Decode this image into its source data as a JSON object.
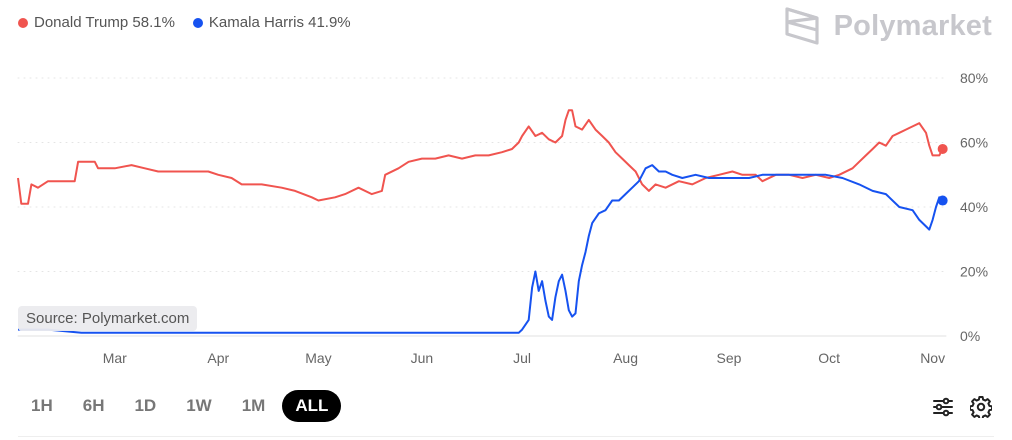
{
  "legend": {
    "trump": {
      "label": "Donald Trump 58.1%",
      "color": "#f0544f"
    },
    "harris": {
      "label": "Kamala Harris 41.9%",
      "color": "#1652f0"
    }
  },
  "brand": {
    "name": "Polymarket",
    "icon": "polymarket-logo-icon"
  },
  "source": "Source: Polymarket.com",
  "ranges": [
    "1H",
    "6H",
    "1D",
    "1W",
    "1M",
    "ALL"
  ],
  "active_range": "ALL",
  "tools": {
    "filter_icon": "sliders-icon",
    "settings_icon": "gear-icon"
  },
  "chart_data": {
    "type": "line",
    "x_ticks": [
      "Mar",
      "Apr",
      "May",
      "Jun",
      "Jul",
      "Aug",
      "Sep",
      "Oct",
      "Nov"
    ],
    "y_ticks": [
      "80%",
      "60%",
      "40%",
      "20%",
      "0%"
    ],
    "ylim": [
      0,
      80
    ],
    "grid": "dotted horizontal",
    "series": [
      {
        "name": "Donald Trump",
        "color": "#f0544f",
        "values": [
          [
            "2024-02-01",
            49
          ],
          [
            "2024-02-02",
            41
          ],
          [
            "2024-02-04",
            41
          ],
          [
            "2024-02-05",
            47
          ],
          [
            "2024-02-07",
            46
          ],
          [
            "2024-02-10",
            48
          ],
          [
            "2024-02-14",
            48
          ],
          [
            "2024-02-18",
            48
          ],
          [
            "2024-02-19",
            54
          ],
          [
            "2024-02-24",
            54
          ],
          [
            "2024-02-25",
            52
          ],
          [
            "2024-03-01",
            52
          ],
          [
            "2024-03-06",
            53
          ],
          [
            "2024-03-10",
            52
          ],
          [
            "2024-03-14",
            51
          ],
          [
            "2024-03-20",
            51
          ],
          [
            "2024-03-29",
            51
          ],
          [
            "2024-04-01",
            50
          ],
          [
            "2024-04-05",
            49
          ],
          [
            "2024-04-08",
            47
          ],
          [
            "2024-04-14",
            47
          ],
          [
            "2024-04-20",
            46
          ],
          [
            "2024-04-24",
            45
          ],
          [
            "2024-04-29",
            43
          ],
          [
            "2024-05-01",
            42
          ],
          [
            "2024-05-06",
            43
          ],
          [
            "2024-05-09",
            44
          ],
          [
            "2024-05-13",
            46
          ],
          [
            "2024-05-17",
            44
          ],
          [
            "2024-05-20",
            45
          ],
          [
            "2024-05-21",
            50
          ],
          [
            "2024-05-25",
            52
          ],
          [
            "2024-05-28",
            54
          ],
          [
            "2024-06-01",
            55
          ],
          [
            "2024-06-05",
            55
          ],
          [
            "2024-06-09",
            56
          ],
          [
            "2024-06-13",
            55
          ],
          [
            "2024-06-17",
            56
          ],
          [
            "2024-06-21",
            56
          ],
          [
            "2024-06-25",
            57
          ],
          [
            "2024-06-28",
            58
          ],
          [
            "2024-06-30",
            60
          ],
          [
            "2024-07-01",
            62
          ],
          [
            "2024-07-03",
            65
          ],
          [
            "2024-07-05",
            62
          ],
          [
            "2024-07-07",
            63
          ],
          [
            "2024-07-09",
            61
          ],
          [
            "2024-07-11",
            60
          ],
          [
            "2024-07-13",
            62
          ],
          [
            "2024-07-14",
            67
          ],
          [
            "2024-07-15",
            70
          ],
          [
            "2024-07-16",
            70
          ],
          [
            "2024-07-17",
            65
          ],
          [
            "2024-07-19",
            64
          ],
          [
            "2024-07-21",
            67
          ],
          [
            "2024-07-23",
            64
          ],
          [
            "2024-07-25",
            62
          ],
          [
            "2024-07-27",
            60
          ],
          [
            "2024-07-29",
            57
          ],
          [
            "2024-07-31",
            55
          ],
          [
            "2024-08-02",
            53
          ],
          [
            "2024-08-04",
            51
          ],
          [
            "2024-08-06",
            47
          ],
          [
            "2024-08-08",
            45
          ],
          [
            "2024-08-10",
            47
          ],
          [
            "2024-08-13",
            46
          ],
          [
            "2024-08-17",
            48
          ],
          [
            "2024-08-21",
            47
          ],
          [
            "2024-08-25",
            49
          ],
          [
            "2024-08-29",
            50
          ],
          [
            "2024-09-02",
            51
          ],
          [
            "2024-09-05",
            50
          ],
          [
            "2024-09-09",
            50
          ],
          [
            "2024-09-11",
            48
          ],
          [
            "2024-09-15",
            50
          ],
          [
            "2024-09-19",
            50
          ],
          [
            "2024-09-23",
            49
          ],
          [
            "2024-09-27",
            50
          ],
          [
            "2024-10-01",
            49
          ],
          [
            "2024-10-04",
            50
          ],
          [
            "2024-10-08",
            52
          ],
          [
            "2024-10-10",
            54
          ],
          [
            "2024-10-12",
            56
          ],
          [
            "2024-10-14",
            58
          ],
          [
            "2024-10-16",
            60
          ],
          [
            "2024-10-18",
            59
          ],
          [
            "2024-10-20",
            62
          ],
          [
            "2024-10-22",
            63
          ],
          [
            "2024-10-24",
            64
          ],
          [
            "2024-10-26",
            65
          ],
          [
            "2024-10-28",
            66
          ],
          [
            "2024-10-30",
            63
          ],
          [
            "2024-10-31",
            59
          ],
          [
            "2024-11-01",
            56
          ],
          [
            "2024-11-03",
            56
          ],
          [
            "2024-11-04",
            58
          ]
        ]
      },
      {
        "name": "Kamala Harris",
        "color": "#1652f0",
        "values": [
          [
            "2024-02-01",
            2
          ],
          [
            "2024-02-10",
            2
          ],
          [
            "2024-02-20",
            1
          ],
          [
            "2024-03-01",
            1
          ],
          [
            "2024-03-15",
            1
          ],
          [
            "2024-04-01",
            1
          ],
          [
            "2024-04-15",
            1
          ],
          [
            "2024-05-01",
            1
          ],
          [
            "2024-05-15",
            1
          ],
          [
            "2024-06-01",
            1
          ],
          [
            "2024-06-15",
            1
          ],
          [
            "2024-06-25",
            1
          ],
          [
            "2024-06-30",
            1
          ],
          [
            "2024-07-01",
            2
          ],
          [
            "2024-07-03",
            5
          ],
          [
            "2024-07-04",
            15
          ],
          [
            "2024-07-05",
            20
          ],
          [
            "2024-07-06",
            14
          ],
          [
            "2024-07-07",
            17
          ],
          [
            "2024-07-08",
            11
          ],
          [
            "2024-07-09",
            6
          ],
          [
            "2024-07-10",
            5
          ],
          [
            "2024-07-11",
            12
          ],
          [
            "2024-07-12",
            17
          ],
          [
            "2024-07-13",
            19
          ],
          [
            "2024-07-14",
            14
          ],
          [
            "2024-07-15",
            8
          ],
          [
            "2024-07-16",
            6
          ],
          [
            "2024-07-17",
            7
          ],
          [
            "2024-07-18",
            17
          ],
          [
            "2024-07-19",
            22
          ],
          [
            "2024-07-20",
            26
          ],
          [
            "2024-07-21",
            31
          ],
          [
            "2024-07-22",
            35
          ],
          [
            "2024-07-24",
            38
          ],
          [
            "2024-07-26",
            39
          ],
          [
            "2024-07-28",
            42
          ],
          [
            "2024-07-30",
            42
          ],
          [
            "2024-08-01",
            44
          ],
          [
            "2024-08-03",
            46
          ],
          [
            "2024-08-05",
            48
          ],
          [
            "2024-08-07",
            52
          ],
          [
            "2024-08-09",
            53
          ],
          [
            "2024-08-11",
            51
          ],
          [
            "2024-08-13",
            51
          ],
          [
            "2024-08-15",
            50
          ],
          [
            "2024-08-18",
            49
          ],
          [
            "2024-08-22",
            50
          ],
          [
            "2024-08-26",
            49
          ],
          [
            "2024-08-30",
            49
          ],
          [
            "2024-09-03",
            49
          ],
          [
            "2024-09-07",
            49
          ],
          [
            "2024-09-11",
            50
          ],
          [
            "2024-09-15",
            50
          ],
          [
            "2024-09-20",
            50
          ],
          [
            "2024-09-25",
            50
          ],
          [
            "2024-09-30",
            50
          ],
          [
            "2024-10-05",
            49
          ],
          [
            "2024-10-10",
            47
          ],
          [
            "2024-10-14",
            45
          ],
          [
            "2024-10-18",
            44
          ],
          [
            "2024-10-22",
            40
          ],
          [
            "2024-10-26",
            39
          ],
          [
            "2024-10-28",
            36
          ],
          [
            "2024-10-30",
            34
          ],
          [
            "2024-10-31",
            33
          ],
          [
            "2024-11-01",
            36
          ],
          [
            "2024-11-02",
            40
          ],
          [
            "2024-11-03",
            43
          ],
          [
            "2024-11-04",
            42
          ]
        ]
      }
    ]
  }
}
